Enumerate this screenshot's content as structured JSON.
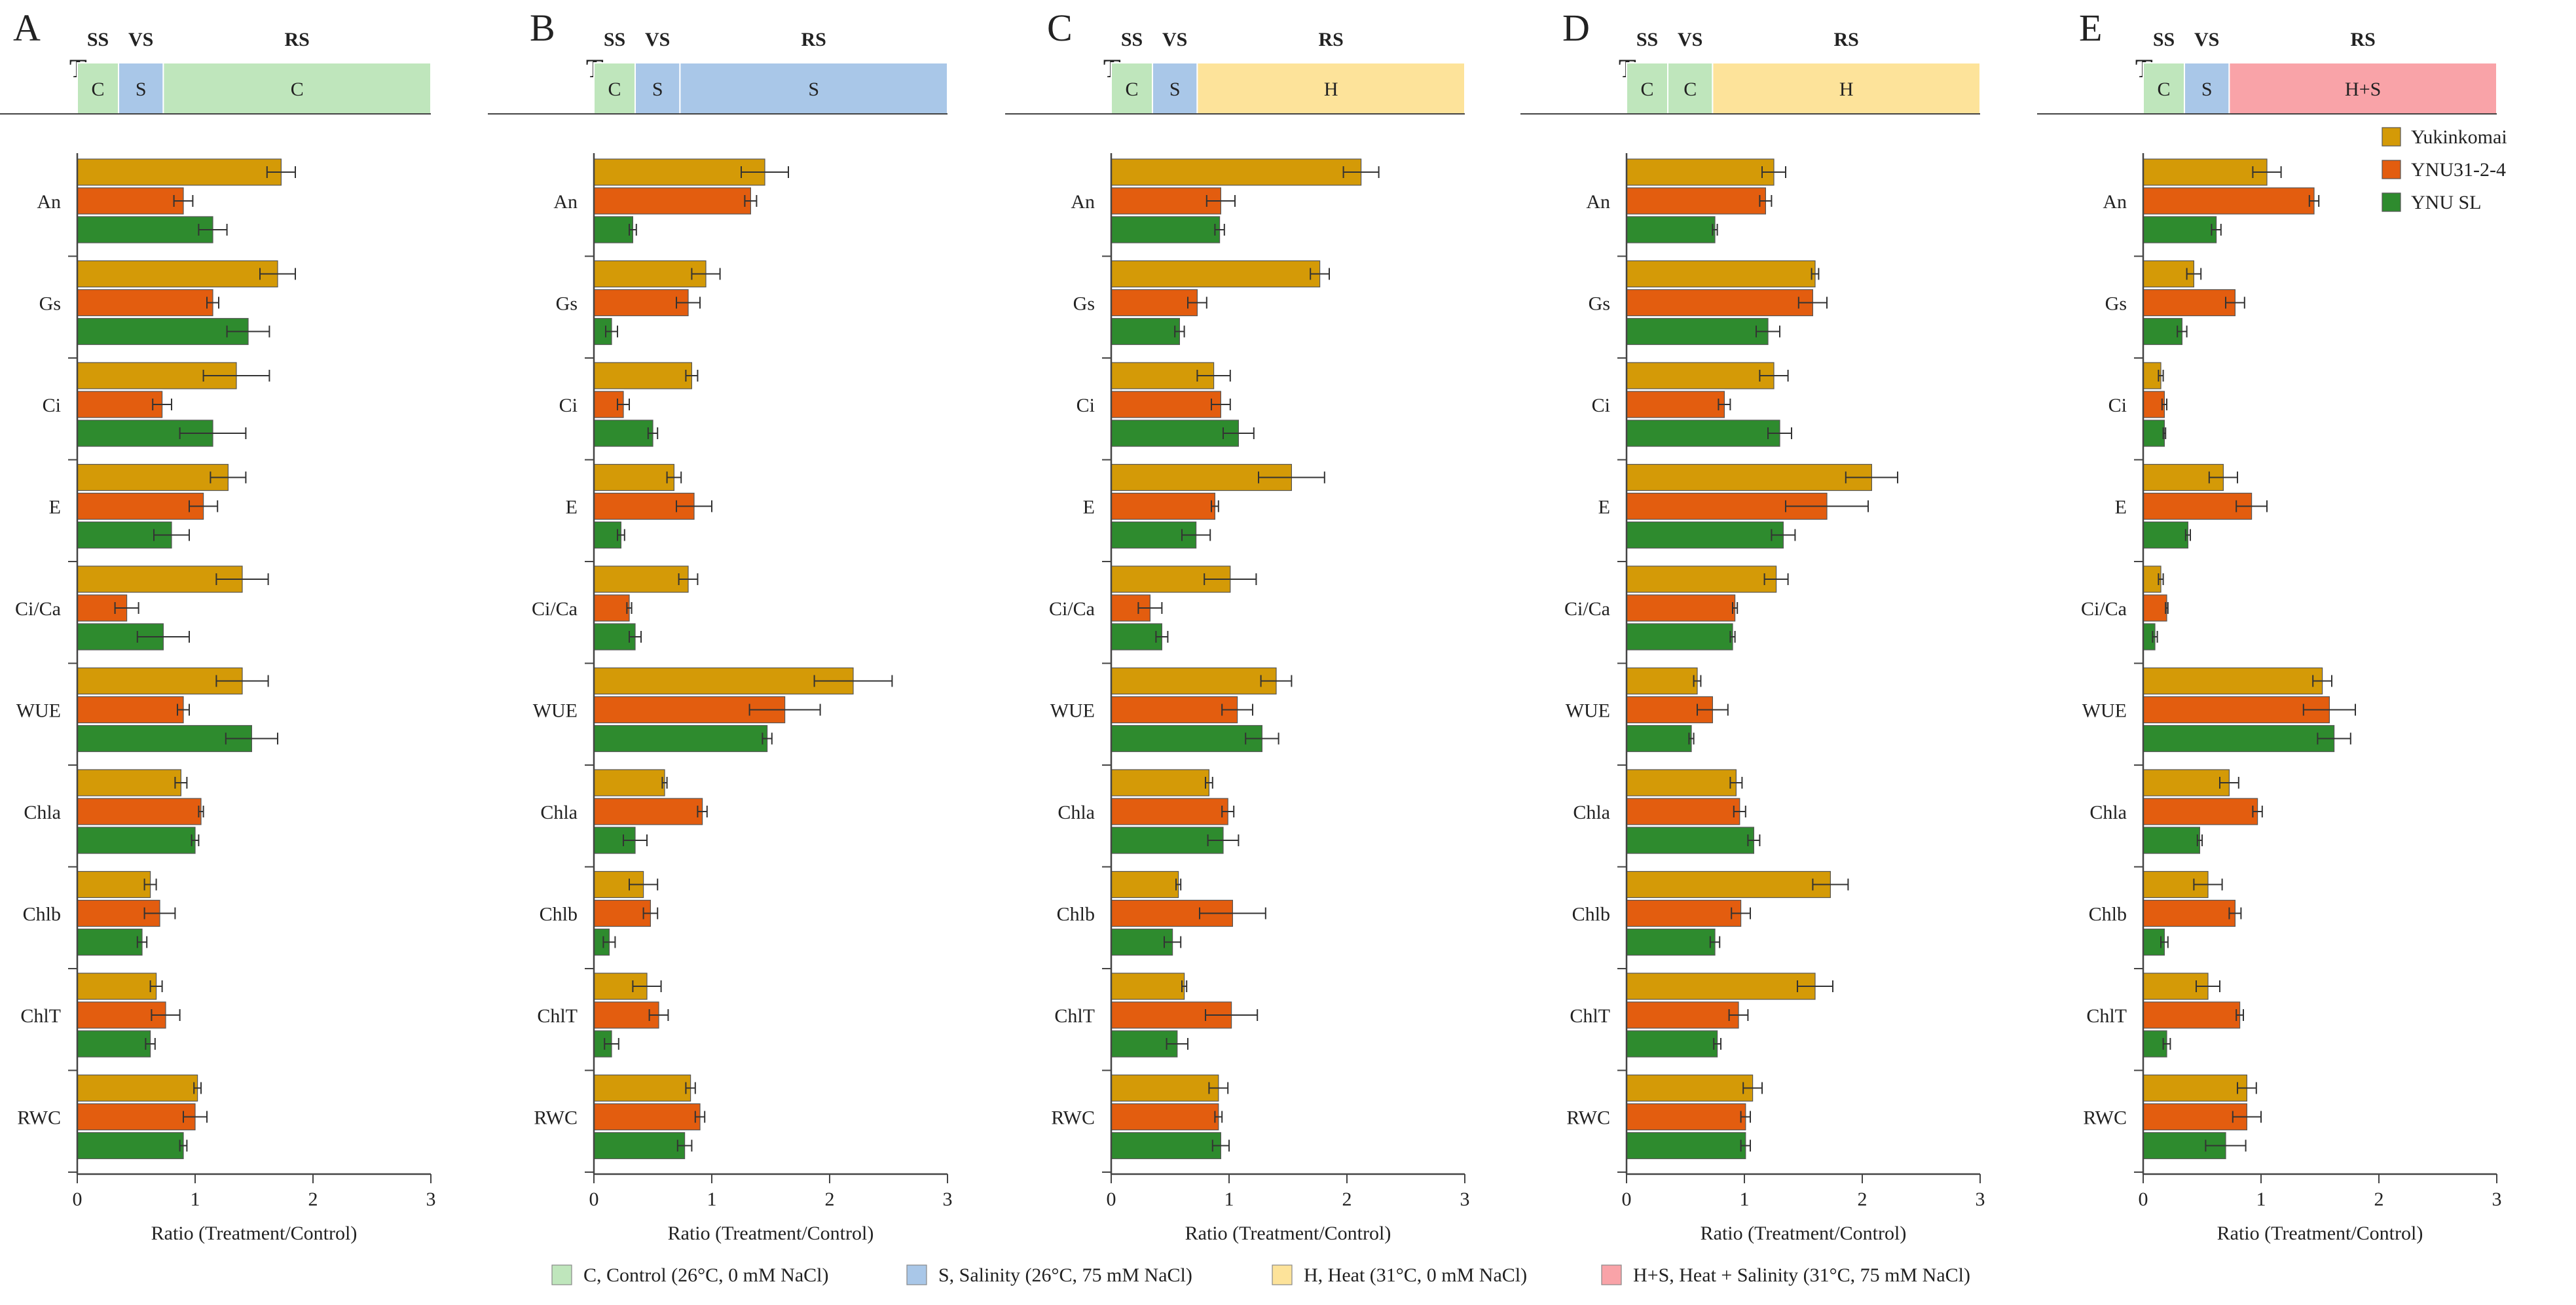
{
  "chart_data": {
    "type": "bar",
    "orientation": "horizontal",
    "variables": [
      "An",
      "Gs",
      "Ci",
      "E",
      "Ci/Ca",
      "WUE",
      "Chla",
      "Chlb",
      "ChlT",
      "RWC"
    ],
    "xlabel": "Ratio (Treatment/Control)",
    "xlim": [
      0,
      3
    ],
    "xticks": [
      "0",
      "1",
      "2",
      "3"
    ],
    "series_names": [
      "Yukinkomai",
      "YNU31-2-4",
      "YNU SL"
    ],
    "stage_labels": [
      "SS",
      "VS",
      "RS"
    ],
    "treatment_colors": {
      "C": "#bfe6bc",
      "S": "#a9c7e8",
      "H": "#fde39a",
      "H+S": "#f9a3a8"
    },
    "series_colors": [
      "#d49a07",
      "#e35d0f",
      "#2e8b2e"
    ],
    "legend": {
      "series": [
        "Yukinkomai",
        "YNU31-2-4",
        "YNU SL"
      ],
      "treatments": [
        {
          "code": "C",
          "label": "C, Control (26°C, 0 mM NaCl)"
        },
        {
          "code": "S",
          "label": "S, Salinity (26°C, 75 mM NaCl)"
        },
        {
          "code": "H",
          "label": "H, Heat (31°C, 0 mM NaCl)"
        },
        {
          "code": "H+S",
          "label": "H+S, Heat + Salinity (31°C, 75 mM NaCl)"
        }
      ]
    },
    "panels": [
      {
        "letter": "A",
        "t_base": "T",
        "t_sub": "2",
        "stages": [
          "C",
          "S",
          "C"
        ],
        "values": [
          [
            1.73,
            1.7,
            1.35,
            1.28,
            1.4,
            1.4,
            0.88,
            0.62,
            0.67,
            1.02
          ],
          [
            0.9,
            1.15,
            0.72,
            1.07,
            0.42,
            0.9,
            1.05,
            0.7,
            0.75,
            1.0
          ],
          [
            1.15,
            1.45,
            1.15,
            0.8,
            0.73,
            1.48,
            1.0,
            0.55,
            0.62,
            0.9
          ]
        ],
        "errors": [
          [
            0.12,
            0.15,
            0.28,
            0.15,
            0.22,
            0.22,
            0.05,
            0.05,
            0.05,
            0.03
          ],
          [
            0.08,
            0.05,
            0.08,
            0.12,
            0.1,
            0.05,
            0.02,
            0.13,
            0.12,
            0.1
          ],
          [
            0.12,
            0.18,
            0.28,
            0.15,
            0.22,
            0.22,
            0.03,
            0.04,
            0.04,
            0.03
          ]
        ]
      },
      {
        "letter": "B",
        "t_base": "T",
        "t_sub": "3",
        "stages": [
          "C",
          "S",
          "S"
        ],
        "values": [
          [
            1.45,
            0.95,
            0.83,
            0.68,
            0.8,
            2.2,
            0.6,
            0.42,
            0.45,
            0.82
          ],
          [
            1.33,
            0.8,
            0.25,
            0.85,
            0.3,
            1.62,
            0.92,
            0.48,
            0.55,
            0.9
          ],
          [
            0.33,
            0.15,
            0.5,
            0.23,
            0.35,
            1.47,
            0.35,
            0.13,
            0.15,
            0.77
          ]
        ],
        "errors": [
          [
            0.2,
            0.12,
            0.05,
            0.06,
            0.08,
            0.33,
            0.02,
            0.12,
            0.12,
            0.04
          ],
          [
            0.05,
            0.1,
            0.05,
            0.15,
            0.02,
            0.3,
            0.04,
            0.06,
            0.08,
            0.04
          ],
          [
            0.03,
            0.05,
            0.04,
            0.03,
            0.05,
            0.04,
            0.1,
            0.05,
            0.06,
            0.06
          ]
        ]
      },
      {
        "letter": "C",
        "t_base": "T",
        "t_sub": "4",
        "stages": [
          "C",
          "S",
          "H"
        ],
        "values": [
          [
            2.12,
            1.77,
            0.87,
            1.53,
            1.01,
            1.4,
            0.83,
            0.57,
            0.62,
            0.91
          ],
          [
            0.93,
            0.73,
            0.93,
            0.88,
            0.33,
            1.07,
            0.99,
            1.03,
            1.02,
            0.91
          ],
          [
            0.92,
            0.58,
            1.08,
            0.72,
            0.43,
            1.28,
            0.95,
            0.52,
            0.56,
            0.93
          ]
        ],
        "errors": [
          [
            0.15,
            0.08,
            0.14,
            0.28,
            0.22,
            0.13,
            0.03,
            0.02,
            0.02,
            0.08
          ],
          [
            0.12,
            0.08,
            0.08,
            0.03,
            0.1,
            0.13,
            0.05,
            0.28,
            0.22,
            0.03
          ],
          [
            0.04,
            0.04,
            0.13,
            0.12,
            0.05,
            0.14,
            0.13,
            0.07,
            0.09,
            0.07
          ]
        ]
      },
      {
        "letter": "D",
        "t_base": "T",
        "t_sub": "5",
        "stages": [
          "C",
          "C",
          "H"
        ],
        "values": [
          [
            1.25,
            1.6,
            1.25,
            2.08,
            1.27,
            0.6,
            0.93,
            1.73,
            1.6,
            1.07
          ],
          [
            1.18,
            1.58,
            0.83,
            1.7,
            0.92,
            0.73,
            0.96,
            0.97,
            0.95,
            1.01
          ],
          [
            0.75,
            1.2,
            1.3,
            1.33,
            0.9,
            0.55,
            1.08,
            0.75,
            0.77,
            1.01
          ]
        ],
        "errors": [
          [
            0.1,
            0.03,
            0.12,
            0.22,
            0.1,
            0.03,
            0.05,
            0.15,
            0.15,
            0.08
          ],
          [
            0.05,
            0.12,
            0.05,
            0.35,
            0.02,
            0.13,
            0.05,
            0.08,
            0.08,
            0.04
          ],
          [
            0.02,
            0.1,
            0.1,
            0.1,
            0.02,
            0.02,
            0.05,
            0.04,
            0.03,
            0.04
          ]
        ]
      },
      {
        "letter": "E",
        "t_base": "T",
        "t_sub": "6",
        "stages": [
          "C",
          "S",
          "H+S"
        ],
        "values": [
          [
            1.05,
            0.43,
            0.15,
            0.68,
            0.15,
            1.52,
            0.73,
            0.55,
            0.55,
            0.88
          ],
          [
            1.45,
            0.78,
            0.18,
            0.92,
            0.2,
            1.58,
            0.97,
            0.78,
            0.82,
            0.88
          ],
          [
            0.62,
            0.33,
            0.18,
            0.38,
            0.1,
            1.62,
            0.48,
            0.18,
            0.2,
            0.7
          ]
        ],
        "errors": [
          [
            0.12,
            0.06,
            0.02,
            0.12,
            0.02,
            0.08,
            0.08,
            0.12,
            0.1,
            0.08
          ],
          [
            0.04,
            0.08,
            0.02,
            0.13,
            0.01,
            0.22,
            0.04,
            0.05,
            0.03,
            0.12
          ],
          [
            0.04,
            0.04,
            0.01,
            0.02,
            0.02,
            0.14,
            0.02,
            0.03,
            0.03,
            0.17
          ]
        ]
      }
    ]
  }
}
